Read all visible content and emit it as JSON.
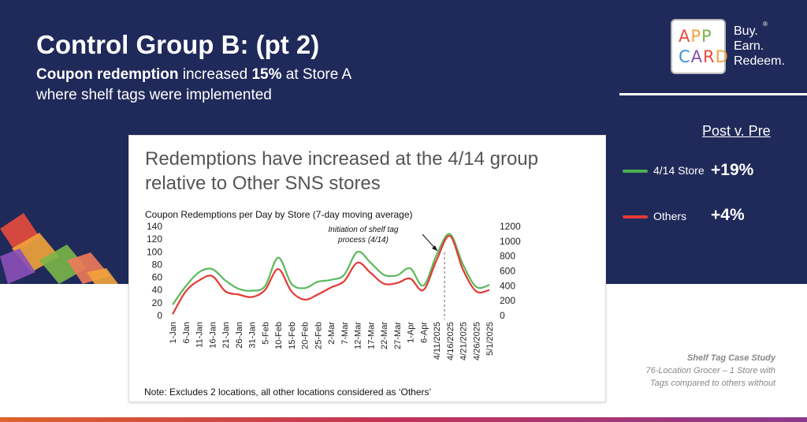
{
  "slide": {
    "title": "Control Group B: (pt 2)",
    "subtitle_bold1": "Coupon redemption",
    "subtitle_text1": " increased ",
    "subtitle_bold2": "15%",
    "subtitle_text2": " at Store A where shelf tags were implemented"
  },
  "logo": {
    "row1": [
      "A",
      "P",
      "P"
    ],
    "row2": [
      "C",
      "A",
      "R",
      "D"
    ],
    "row1_colors": [
      "#e94b3c",
      "#f2a33a",
      "#7ab648"
    ],
    "row2_colors": [
      "#3b8fd6",
      "#8a4fb8",
      "#e94b3c",
      "#f2a33a"
    ],
    "tagline": [
      "Buy.",
      "Earn.",
      "Redeem."
    ],
    "reg": "®"
  },
  "post_v_pre": {
    "title": "Post v. Pre",
    "items": [
      {
        "label": "4/14 Store",
        "value": "+19%",
        "color": "#4caf50"
      },
      {
        "label": "Others",
        "value": "+4%",
        "color": "#e53935"
      }
    ]
  },
  "card": {
    "title": "Redemptions have increased at the 4/14 group relative to Other SNS stores",
    "note": "Note: Excludes 2 locations, all other locations considered as ‘Others’"
  },
  "case_study": {
    "heading": "Shelf Tag Case Study",
    "line1": "76-Location Grocer – 1 Store with",
    "line2": "Tags compared to others without"
  },
  "chart_data": {
    "type": "line",
    "title": "Coupon Redemptions per Day by Store (7-day moving average)",
    "left_axis": {
      "ylim": [
        0,
        140
      ],
      "ticks": [
        0,
        20,
        40,
        60,
        80,
        100,
        120,
        140
      ]
    },
    "right_axis": {
      "ylim": [
        0,
        1200
      ],
      "ticks": [
        0,
        200,
        400,
        600,
        800,
        1000,
        1200
      ]
    },
    "categories": [
      "1-Jan",
      "6-Jan",
      "11-Jan",
      "16-Jan",
      "21-Jan",
      "26-Jan",
      "31-Jan",
      "5-Feb",
      "10-Feb",
      "15-Feb",
      "20-Feb",
      "25-Feb",
      "2-Mar",
      "7-Mar",
      "12-Mar",
      "17-Mar",
      "22-Mar",
      "27-Mar",
      "1-Apr",
      "6-Apr",
      "4/11/2025",
      "4/16/2025",
      "4/21/2025",
      "4/26/2025",
      "5/1/2025"
    ],
    "annotation": {
      "text_line1": "Initiation of shelf tag",
      "text_line2": "process (4/14)",
      "x_index": 20.6
    },
    "series": [
      {
        "name": "4/14 Store",
        "axis": "left",
        "color": "#5cb85c",
        "values": [
          17,
          46,
          68,
          73,
          55,
          42,
          39,
          46,
          91,
          50,
          43,
          53,
          56,
          64,
          100,
          83,
          64,
          63,
          74,
          47,
          95,
          128,
          80,
          45,
          48
        ]
      },
      {
        "name": "Others",
        "axis": "left",
        "color": "#e53935",
        "values": [
          2,
          38,
          55,
          62,
          38,
          33,
          29,
          40,
          73,
          38,
          25,
          33,
          44,
          54,
          83,
          67,
          50,
          51,
          58,
          40,
          87,
          125,
          72,
          38,
          40
        ]
      }
    ]
  }
}
